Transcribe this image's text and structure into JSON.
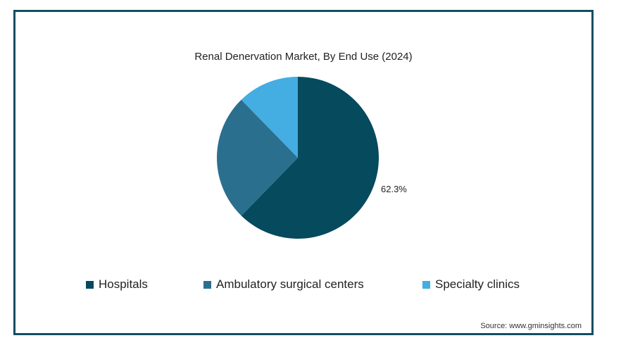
{
  "chart_data": {
    "type": "pie",
    "title": "Renal Denervation Market, By End Use (2024)",
    "slices": [
      {
        "label": "Hospitals",
        "value": 62.3,
        "color": "#064a5e",
        "data_label": "62.3%"
      },
      {
        "label": "Ambulatory surgical centers",
        "value": 25.4,
        "color": "#2b6f8f",
        "data_label": ""
      },
      {
        "label": "Specialty clinics",
        "value": 12.3,
        "color": "#44ade2",
        "data_label": ""
      }
    ],
    "legend_position": "bottom"
  },
  "source": "Source: www.gminsights.com"
}
